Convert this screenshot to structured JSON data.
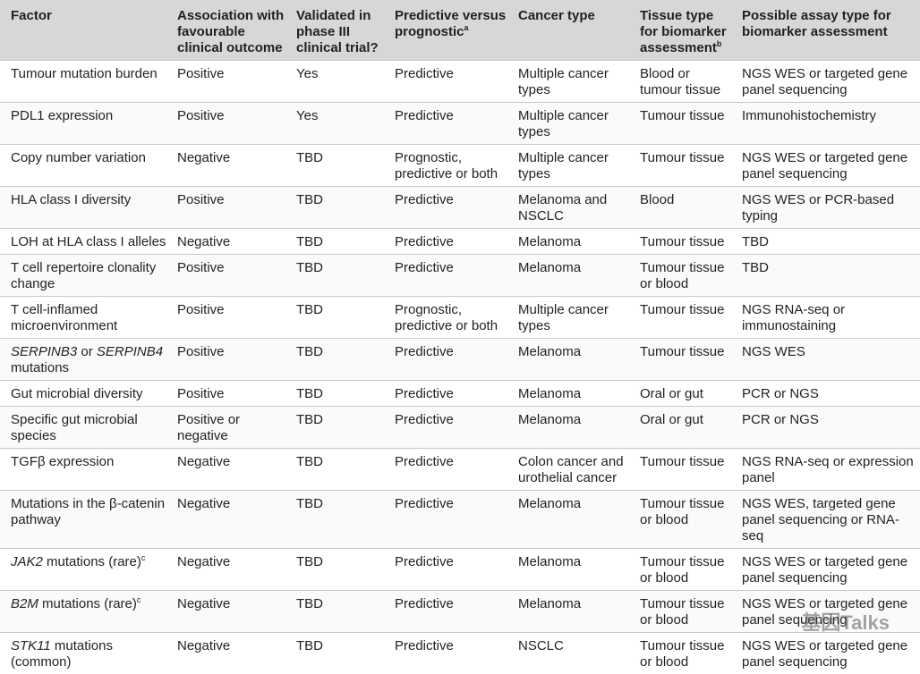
{
  "table": {
    "header": [
      "Factor",
      "Association with favourable clinical outcome",
      "Validated in phase III clinical trial?",
      [
        {
          "text": "Predictive versus prognostic"
        },
        {
          "text": "a",
          "sup": true
        }
      ],
      "Cancer type",
      [
        {
          "text": "Tissue type for biomarker assessment"
        },
        {
          "text": "b",
          "sup": true
        }
      ],
      "Possible assay type for biomarker assessment"
    ],
    "rows": [
      [
        "Tumour mutation burden",
        "Positive",
        "Yes",
        "Predictive",
        "Multiple cancer types",
        "Blood or tumour tissue",
        "NGS WES or targeted gene panel sequencing"
      ],
      [
        "PDL1 expression",
        "Positive",
        "Yes",
        "Predictive",
        "Multiple cancer types",
        "Tumour tissue",
        "Immunohistochemistry"
      ],
      [
        "Copy number variation",
        "Negative",
        "TBD",
        "Prognostic, predictive or both",
        "Multiple cancer types",
        "Tumour tissue",
        "NGS WES or targeted gene panel sequencing"
      ],
      [
        "HLA class I diversity",
        "Positive",
        "TBD",
        "Predictive",
        "Melanoma and NSCLC",
        "Blood",
        "NGS WES or PCR-based typing"
      ],
      [
        "LOH at HLA class I alleles",
        "Negative",
        "TBD",
        "Predictive",
        "Melanoma",
        "Tumour tissue",
        "TBD"
      ],
      [
        "T cell repertoire clonality change",
        "Positive",
        "TBD",
        "Predictive",
        "Melanoma",
        "Tumour tissue or blood",
        "TBD"
      ],
      [
        "T cell-inflamed microenvironment",
        "Positive",
        "TBD",
        "Prognostic, predictive or both",
        "Multiple cancer types",
        "Tumour tissue",
        "NGS RNA-seq or immunostaining"
      ],
      [
        [
          {
            "text": "SERPINB3",
            "italic": true
          },
          {
            "text": " or "
          },
          {
            "text": "SERPINB4",
            "italic": true
          },
          {
            "text": " mutations"
          }
        ],
        "Positive",
        "TBD",
        "Predictive",
        "Melanoma",
        "Tumour tissue",
        "NGS WES"
      ],
      [
        "Gut microbial diversity",
        "Positive",
        "TBD",
        "Predictive",
        "Melanoma",
        "Oral or gut",
        "PCR or NGS"
      ],
      [
        "Specific gut microbial species",
        "Positive or negative",
        "TBD",
        "Predictive",
        "Melanoma",
        "Oral or gut",
        "PCR or NGS"
      ],
      [
        "TGFβ expression",
        "Negative",
        "TBD",
        "Predictive",
        "Colon cancer and urothelial cancer",
        "Tumour tissue",
        "NGS RNA-seq or expression panel"
      ],
      [
        "Mutations in the β-catenin pathway",
        "Negative",
        "TBD",
        "Predictive",
        "Melanoma",
        "Tumour tissue or blood",
        "NGS WES, targeted gene panel sequencing or RNA-seq"
      ],
      [
        [
          {
            "text": "JAK2",
            "italic": true
          },
          {
            "text": " mutations (rare)"
          },
          {
            "text": "c",
            "sup": true
          }
        ],
        "Negative",
        "TBD",
        "Predictive",
        "Melanoma",
        "Tumour tissue or blood",
        "NGS WES or targeted gene panel sequencing"
      ],
      [
        [
          {
            "text": "B2M",
            "italic": true
          },
          {
            "text": " mutations (rare)"
          },
          {
            "text": "c",
            "sup": true
          }
        ],
        "Negative",
        "TBD",
        "Predictive",
        "Melanoma",
        "Tumour tissue or blood",
        "NGS WES or targeted gene panel sequencing"
      ],
      [
        [
          {
            "text": "STK11",
            "italic": true
          },
          {
            "text": " mutations (common)"
          }
        ],
        "Negative",
        "TBD",
        "Predictive",
        "NSCLC",
        "Tumour tissue or blood",
        "NGS WES or targeted gene panel sequencing"
      ]
    ]
  },
  "watermark": "基因Talks"
}
